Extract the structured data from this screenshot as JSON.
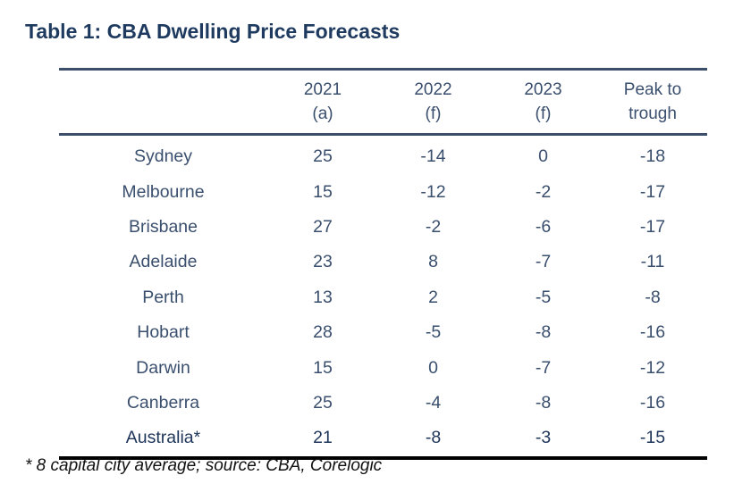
{
  "title": "Table 1: CBA Dwelling Price Forecasts",
  "header": {
    "columns": [
      {
        "line1": "",
        "line2": ""
      },
      {
        "line1": "2021",
        "line2": "(a)"
      },
      {
        "line1": "2022",
        "line2": "(f)"
      },
      {
        "line1": "2023",
        "line2": "(f)"
      },
      {
        "line1": "Peak to",
        "line2": "trough"
      }
    ]
  },
  "rows": [
    {
      "city": "Sydney",
      "y2021": "25",
      "y2022": "-14",
      "y2023": "0",
      "peak": "-18"
    },
    {
      "city": "Melbourne",
      "y2021": "15",
      "y2022": "-12",
      "y2023": "-2",
      "peak": "-17"
    },
    {
      "city": "Brisbane",
      "y2021": "27",
      "y2022": "-2",
      "y2023": "-6",
      "peak": "-17"
    },
    {
      "city": "Adelaide",
      "y2021": "23",
      "y2022": "8",
      "y2023": "-7",
      "peak": "-11"
    },
    {
      "city": "Perth",
      "y2021": "13",
      "y2022": "2",
      "y2023": "-5",
      "peak": "-8"
    },
    {
      "city": "Hobart",
      "y2021": "28",
      "y2022": "-5",
      "y2023": "-8",
      "peak": "-16"
    },
    {
      "city": "Darwin",
      "y2021": "15",
      "y2022": "0",
      "y2023": "-7",
      "peak": "-12"
    },
    {
      "city": "Canberra",
      "y2021": "25",
      "y2022": "-4",
      "y2023": "-8",
      "peak": "-16"
    },
    {
      "city": "Australia*",
      "y2021": "21",
      "y2022": "-8",
      "y2023": "-3",
      "peak": "-15"
    }
  ],
  "footnote": "* 8 capital city average; source: CBA, Corelogic",
  "colors": {
    "title": "#1f3a5f",
    "text": "#3a4f6e",
    "rule": "#3b4f6b"
  }
}
